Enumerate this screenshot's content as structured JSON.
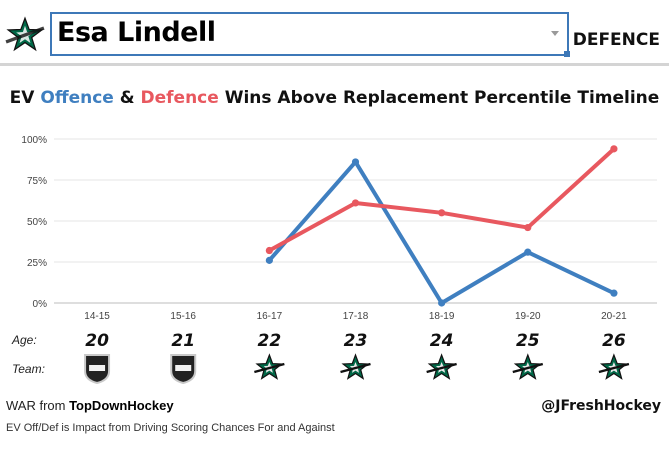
{
  "header": {
    "player_name": "Esa Lindell",
    "position": "DEFENCE"
  },
  "title": {
    "prefix": "EV ",
    "offence": "Offence",
    "amp": " & ",
    "defence": "Defence",
    "suffix": " Wins Above Replacement Percentile Timeline"
  },
  "row_labels": {
    "age": "Age:",
    "team": "Team:"
  },
  "colors": {
    "offence": "#3f7fc0",
    "defence": "#e8585f",
    "stars_green": "#006847",
    "nhl_gray": "#c9c9c9"
  },
  "chart_data": {
    "type": "line",
    "title": "EV Offence & Defence Wins Above Replacement Percentile Timeline",
    "categories": [
      "14-15",
      "15-16",
      "16-17",
      "17-18",
      "18-19",
      "19-20",
      "20-21"
    ],
    "y_ticks": [
      "100%",
      "75%",
      "50%",
      "25%",
      "0%"
    ],
    "ylim": [
      0,
      100
    ],
    "grid": true,
    "series": [
      {
        "name": "Offence",
        "color": "#3f7fc0",
        "values": [
          null,
          null,
          26,
          86,
          0,
          31,
          6
        ]
      },
      {
        "name": "Defence",
        "color": "#e8585f",
        "values": [
          null,
          null,
          32,
          61,
          55,
          46,
          94
        ]
      }
    ],
    "ages": [
      "20",
      "21",
      "22",
      "23",
      "24",
      "25",
      "26"
    ],
    "teams": [
      "NHL",
      "NHL",
      "DAL",
      "DAL",
      "DAL",
      "DAL",
      "DAL"
    ]
  },
  "footer": {
    "war_prefix": "WAR from ",
    "war_source": "TopDownHockey",
    "note": "EV Off/Def is Impact from Driving Scoring Chances For and Against",
    "credit": "@JFreshHockey"
  }
}
